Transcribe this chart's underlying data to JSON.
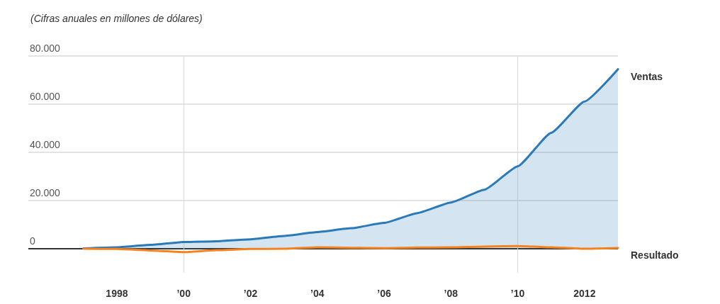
{
  "chart_data": {
    "type": "line",
    "title": "(Cifras anuales en millones de dólares)",
    "x": [
      1997,
      1998,
      1999,
      2000,
      2001,
      2002,
      2003,
      2004,
      2005,
      2006,
      2007,
      2008,
      2009,
      2010,
      2011,
      2012,
      2013
    ],
    "series": [
      {
        "name": "Ventas",
        "type": "area",
        "color": "#2a7ab9",
        "values": [
          150,
          600,
          1600,
          2800,
          3100,
          3900,
          5300,
          6900,
          8500,
          10700,
          14800,
          19200,
          24500,
          34200,
          48100,
          61100,
          74500
        ]
      },
      {
        "name": "Resultado",
        "color": "#f5821f",
        "values": [
          0,
          -100,
          -700,
          -1400,
          -600,
          -100,
          0,
          600,
          400,
          200,
          500,
          600,
          900,
          1100,
          600,
          0,
          300
        ]
      }
    ],
    "xlim": [
      1995.35,
      2013
    ],
    "xticks": [
      {
        "value": 1998,
        "label": "1998"
      },
      {
        "value": 2000,
        "label": "’00"
      },
      {
        "value": 2002,
        "label": "’02"
      },
      {
        "value": 2004,
        "label": "’04"
      },
      {
        "value": 2006,
        "label": "’06"
      },
      {
        "value": 2008,
        "label": "’08"
      },
      {
        "value": 2010,
        "label": "’10"
      },
      {
        "value": 2012,
        "label": "2012"
      }
    ],
    "ylim": [
      -10000,
      80000
    ],
    "yticks": [
      {
        "value": 0,
        "label": "0"
      },
      {
        "value": 20000,
        "label": "20.000"
      },
      {
        "value": 40000,
        "label": "40.000"
      },
      {
        "value": 60000,
        "label": "60.000"
      },
      {
        "value": 80000,
        "label": "80.000"
      }
    ],
    "ref_lines": [
      {
        "axis": "y",
        "value": 0,
        "color": "#333333"
      },
      {
        "axis": "x",
        "value": 2000,
        "color": "#d9d9d9"
      },
      {
        "axis": "x",
        "value": 2010,
        "color": "#d9d9d9"
      }
    ],
    "grid": "y",
    "legend": false,
    "marker": "none",
    "line_style": "solid"
  }
}
